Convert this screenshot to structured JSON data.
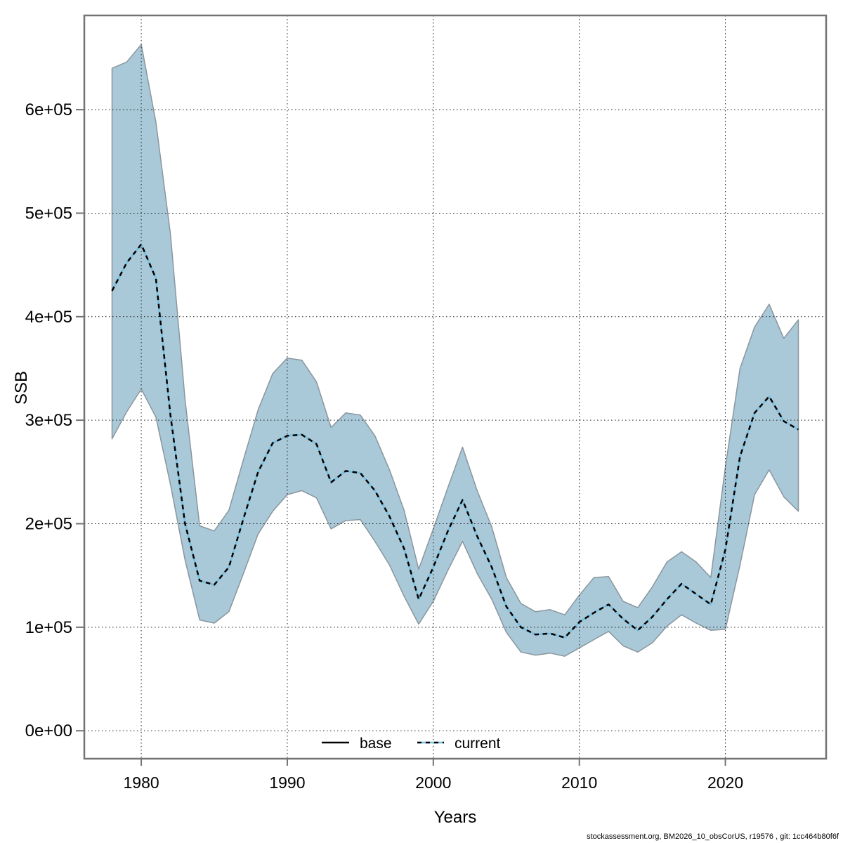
{
  "footer": {
    "text": "stockassessment.org, BM2026_10_obsCorUS, r19576 , git: 1cc464b80f6f"
  },
  "chart_data": {
    "type": "area",
    "title": "",
    "xlabel": "Years",
    "ylabel": "SSB",
    "grid": true,
    "xlim": [
      1976.1,
      2026.9
    ],
    "ylim": [
      -27000,
      691000
    ],
    "x_ticks": [
      1980,
      1990,
      2000,
      2010,
      2020
    ],
    "x_tick_labels": [
      "1980",
      "1990",
      "2000",
      "2010",
      "2020"
    ],
    "y_ticks": [
      0,
      100000,
      200000,
      300000,
      400000,
      500000,
      600000
    ],
    "y_tick_labels": [
      "0e+00",
      "1e+05",
      "2e+05",
      "3e+05",
      "4e+05",
      "5e+05",
      "6e+05"
    ],
    "legend": {
      "position": "bottom-center",
      "entries": [
        {
          "label": "base",
          "style": "solid",
          "color": "#000000"
        },
        {
          "label": "current",
          "style": "dotted",
          "color": "#74bfdf"
        }
      ]
    },
    "colors": {
      "ribbon_fill": "#a9c8d8",
      "ribbon_edge": "#8a969e",
      "line_blue": "#74bfdf",
      "line_black": "#000000",
      "border_gray": "#737373"
    },
    "years": [
      1978,
      1979,
      1980,
      1981,
      1982,
      1983,
      1984,
      1985,
      1986,
      1987,
      1988,
      1989,
      1990,
      1991,
      1992,
      1993,
      1994,
      1995,
      1996,
      1997,
      1998,
      1999,
      2000,
      2001,
      2002,
      2003,
      2004,
      2005,
      2006,
      2007,
      2008,
      2009,
      2010,
      2011,
      2012,
      2013,
      2014,
      2015,
      2016,
      2017,
      2018,
      2019,
      2020,
      2021,
      2022,
      2023,
      2024,
      2025
    ],
    "series": [
      {
        "name": "current",
        "values": [
          425000,
          452000,
          470000,
          437000,
          305000,
          200000,
          145000,
          141000,
          158000,
          205000,
          250000,
          278000,
          285000,
          286000,
          277000,
          240000,
          251000,
          249000,
          232000,
          207000,
          176000,
          127000,
          158000,
          193000,
          223000,
          188000,
          158000,
          120000,
          100000,
          93000,
          94000,
          90000,
          105000,
          114000,
          122000,
          108000,
          97000,
          110000,
          127000,
          142000,
          132000,
          122000,
          175000,
          265000,
          307000,
          323000,
          299000,
          291000
        ]
      },
      {
        "name": "ci_low",
        "values": [
          282000,
          308000,
          330000,
          303000,
          238000,
          165000,
          107000,
          104000,
          115000,
          152000,
          190000,
          212000,
          228000,
          232000,
          225000,
          195000,
          203000,
          204000,
          183000,
          160000,
          130000,
          103000,
          125000,
          155000,
          183000,
          152000,
          127000,
          95000,
          76000,
          73000,
          75000,
          72000,
          80000,
          88000,
          96000,
          82000,
          76000,
          85000,
          101000,
          112000,
          104000,
          97000,
          98000,
          160000,
          228000,
          252000,
          226000,
          212000
        ]
      },
      {
        "name": "ci_high",
        "values": [
          640000,
          646000,
          663000,
          588000,
          480000,
          320000,
          198000,
          193000,
          213000,
          262000,
          310000,
          345000,
          360000,
          358000,
          337000,
          293000,
          307000,
          305000,
          285000,
          252000,
          213000,
          156000,
          195000,
          235000,
          274000,
          232000,
          197000,
          148000,
          123000,
          115000,
          117000,
          112000,
          131000,
          148000,
          149000,
          125000,
          119000,
          139000,
          163000,
          173000,
          163000,
          148000,
          255000,
          350000,
          390000,
          412000,
          379000,
          397000
        ]
      }
    ]
  }
}
